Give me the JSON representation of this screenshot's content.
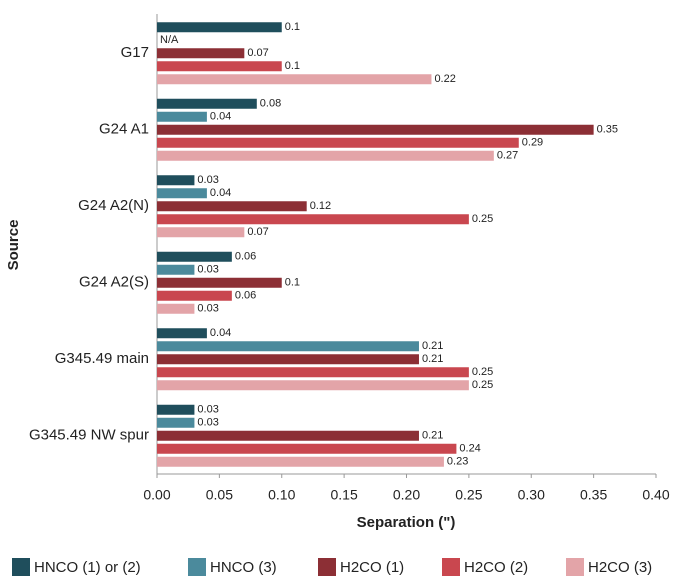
{
  "chart_data": {
    "type": "bar",
    "orientation": "horizontal",
    "xlabel": "Separation (\")",
    "ylabel": "Source",
    "categories": [
      "G17",
      "G24 A1",
      "G24 A2(N)",
      "G24 A2(S)",
      "G345.49 main",
      "G345.49 NW spur"
    ],
    "series": [
      {
        "name": "HNCO (1) or (2)",
        "color": "#1f4e5c",
        "values": [
          0.1,
          0.08,
          0.03,
          0.06,
          0.04,
          0.03
        ]
      },
      {
        "name": "HNCO (3)",
        "color": "#4b8a9c",
        "values": [
          null,
          0.04,
          0.04,
          0.03,
          0.21,
          0.03
        ],
        "value_labels": [
          "N/A",
          "0.04",
          "0.04",
          "0.03",
          "0.21",
          "0.03"
        ]
      },
      {
        "name": "H2CO (1)",
        "color": "#8c2f35",
        "values": [
          0.07,
          0.35,
          0.12,
          0.1,
          0.21,
          0.21
        ]
      },
      {
        "name": "H2CO (2)",
        "color": "#c9474f",
        "values": [
          0.1,
          0.29,
          0.25,
          0.06,
          0.25,
          0.24
        ]
      },
      {
        "name": "H2CO (3)",
        "color": "#e3a4a8",
        "values": [
          0.22,
          0.27,
          0.07,
          0.03,
          0.25,
          0.23
        ]
      }
    ],
    "xlim": [
      0,
      0.4
    ],
    "xticks": [
      {
        "value": 0,
        "label": "0.00"
      },
      {
        "value": 0.05,
        "label": "0.05"
      },
      {
        "value": 0.1,
        "label": "0.10"
      },
      {
        "value": 0.15,
        "label": "0.15"
      },
      {
        "value": 0.2,
        "label": "0.20"
      },
      {
        "value": 0.25,
        "label": "0.25"
      },
      {
        "value": 0.3,
        "label": "0.30"
      },
      {
        "value": 0.35,
        "label": "0.35"
      },
      {
        "value": 0.4,
        "label": "0.40"
      }
    ],
    "grid": false,
    "legend": "bottom"
  }
}
